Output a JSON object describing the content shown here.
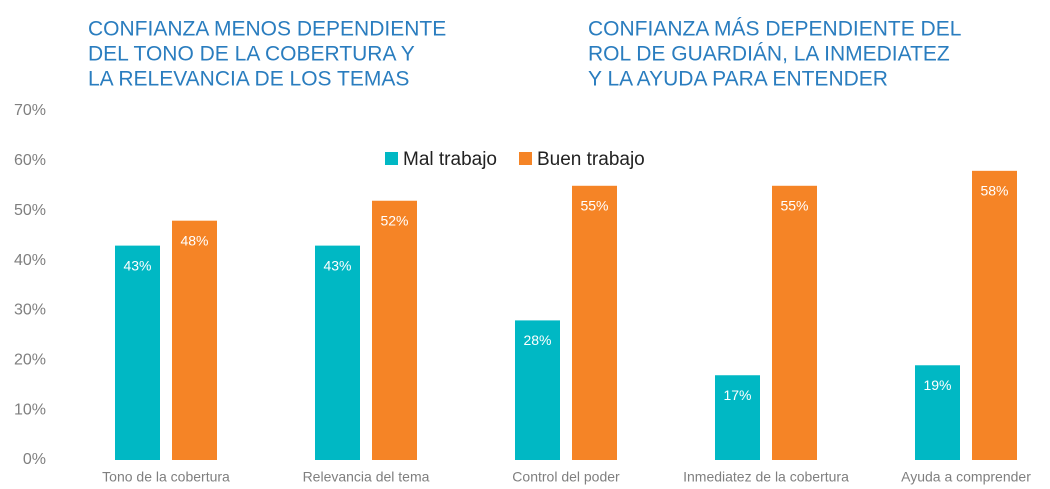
{
  "chart_data": {
    "type": "bar",
    "annotations": [
      [
        "CONFIANZA MENOS DEPENDIENTE",
        "DEL TONO DE LA COBERTURA Y",
        "LA RELEVANCIA DE LOS TEMAS"
      ],
      [
        "CONFIANZA MÁS DEPENDIENTE DEL",
        "ROL DE GUARDIÁN, LA INMEDIATEZ",
        "Y LA AYUDA PARA ENTENDER"
      ]
    ],
    "categories": [
      "Tono de la cobertura",
      "Relevancia del tema",
      "Control del poder",
      "Inmediatez de la cobertura",
      "Ayuda a comprender"
    ],
    "series": [
      {
        "name": "Mal trabajo",
        "color": "#00b8c4",
        "values": [
          43,
          43,
          28,
          17,
          19
        ],
        "value_labels": [
          "43%",
          "43%",
          "28%",
          "17%",
          "19%"
        ]
      },
      {
        "name": "Buen trabajo",
        "color": "#f58426",
        "values": [
          48,
          52,
          55,
          55,
          58
        ],
        "value_labels": [
          "48%",
          "52%",
          "55%",
          "55%",
          "58%"
        ]
      }
    ],
    "ylim": [
      0,
      70
    ],
    "yticks": [
      {
        "value": 0,
        "label": "0%"
      },
      {
        "value": 10,
        "label": "10%"
      },
      {
        "value": 20,
        "label": "20%"
      },
      {
        "value": 30,
        "label": "30%"
      },
      {
        "value": 40,
        "label": "40%"
      },
      {
        "value": 50,
        "label": "50%"
      },
      {
        "value": 60,
        "label": "60%"
      },
      {
        "value": 70,
        "label": "70%"
      }
    ],
    "grid": false,
    "legend": "top"
  }
}
